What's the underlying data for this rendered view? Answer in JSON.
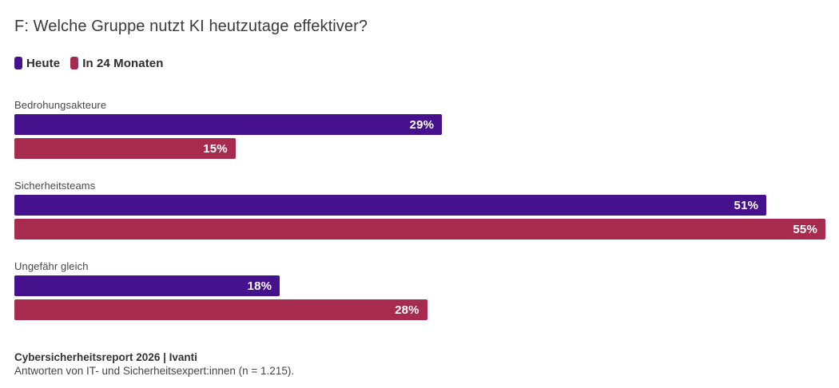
{
  "chart_data": {
    "type": "bar",
    "orientation": "horizontal",
    "title": "F: Welche Gruppe nutzt KI heutzutage effektiver?",
    "categories": [
      "Bedrohungsakteure",
      "Sicherheitsteams",
      "Ungefähr gleich"
    ],
    "series": [
      {
        "name": "Heute",
        "color": "#45118C",
        "values": [
          29,
          51,
          18
        ]
      },
      {
        "name": "In 24 Monaten",
        "color": "#A72B4E",
        "values": [
          15,
          55,
          28
        ]
      }
    ],
    "value_suffix": "%",
    "value_labels": "inside-right",
    "xlim": [
      0,
      55
    ],
    "grid": false,
    "legend_position": "top-left",
    "colors": {
      "background": "#ffffff",
      "text": "#3a3a3a",
      "value_text": "#ffffff"
    }
  },
  "footer": {
    "source": "Cybersicherheitsreport 2026 | Ivanti",
    "note": "Antworten von IT- und Sicherheitsexpert:innen (n = 1.215)."
  }
}
